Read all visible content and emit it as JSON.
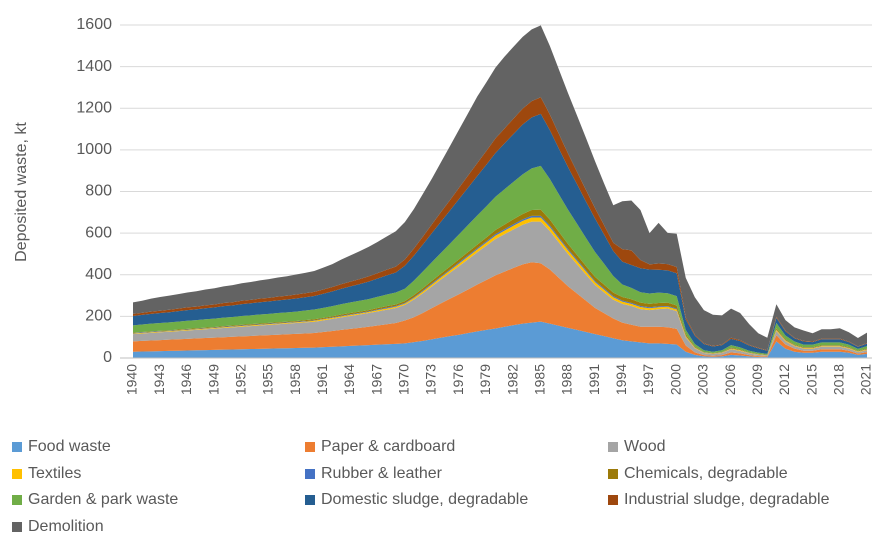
{
  "chart_data": {
    "type": "stacked_area",
    "y_label": "Deposited waste, kt",
    "x": [
      1940,
      1941,
      1942,
      1943,
      1944,
      1945,
      1946,
      1947,
      1948,
      1949,
      1950,
      1951,
      1952,
      1953,
      1954,
      1955,
      1956,
      1957,
      1958,
      1959,
      1960,
      1961,
      1962,
      1963,
      1964,
      1965,
      1966,
      1967,
      1968,
      1969,
      1970,
      1971,
      1972,
      1973,
      1974,
      1975,
      1976,
      1977,
      1978,
      1979,
      1980,
      1981,
      1982,
      1983,
      1984,
      1985,
      1986,
      1987,
      1988,
      1989,
      1990,
      1991,
      1992,
      1993,
      1994,
      1995,
      1996,
      1997,
      1998,
      1999,
      2000,
      2001,
      2002,
      2003,
      2004,
      2005,
      2006,
      2007,
      2008,
      2009,
      2010,
      2011,
      2012,
      2013,
      2014,
      2015,
      2016,
      2017,
      2018,
      2019,
      2020,
      2021
    ],
    "xlim": [
      1940,
      2021
    ],
    "xticks": [
      1940,
      1943,
      1946,
      1949,
      1952,
      1955,
      1958,
      1961,
      1964,
      1967,
      1970,
      1973,
      1976,
      1979,
      1982,
      1985,
      1988,
      1991,
      1994,
      1997,
      2000,
      2003,
      2006,
      2009,
      2012,
      2015,
      2018,
      2021
    ],
    "ylim": [
      0,
      1600
    ],
    "yticks": [
      0,
      200,
      400,
      600,
      800,
      1000,
      1200,
      1400,
      1600
    ],
    "grid": true,
    "legend": "bottom",
    "series": [
      {
        "name": "Food waste",
        "color": "#5b9bd5",
        "values": [
          30,
          31,
          32,
          33,
          34,
          35,
          36,
          37,
          38,
          39,
          40,
          41,
          42,
          43,
          44,
          45,
          46,
          47,
          48,
          49,
          50,
          52,
          54,
          56,
          58,
          60,
          62,
          64,
          66,
          68,
          70,
          76,
          82,
          90,
          98,
          105,
          112,
          120,
          128,
          135,
          142,
          150,
          158,
          165,
          170,
          175,
          165,
          155,
          145,
          135,
          125,
          115,
          105,
          95,
          85,
          80,
          75,
          70,
          70,
          68,
          65,
          30,
          15,
          8,
          6,
          8,
          15,
          12,
          8,
          5,
          4,
          80,
          45,
          30,
          25,
          25,
          30,
          30,
          30,
          25,
          15,
          20
        ]
      },
      {
        "name": "Paper & cardboard",
        "color": "#ed7d31",
        "values": [
          50,
          51,
          52,
          53,
          54,
          55,
          56,
          57,
          58,
          59,
          60,
          61,
          62,
          63,
          64,
          65,
          66,
          67,
          68,
          69,
          70,
          73,
          76,
          79,
          82,
          85,
          88,
          92,
          96,
          100,
          110,
          120,
          135,
          150,
          165,
          180,
          195,
          210,
          225,
          240,
          255,
          265,
          275,
          285,
          290,
          280,
          260,
          230,
          200,
          175,
          150,
          125,
          110,
          95,
          85,
          80,
          75,
          80,
          80,
          80,
          75,
          30,
          12,
          6,
          5,
          6,
          12,
          10,
          6,
          4,
          3,
          30,
          20,
          15,
          10,
          10,
          12,
          12,
          12,
          10,
          6,
          8
        ]
      },
      {
        "name": "Wood",
        "color": "#a5a5a5",
        "values": [
          35,
          36,
          37,
          38,
          38,
          39,
          40,
          41,
          42,
          43,
          44,
          45,
          46,
          47,
          48,
          49,
          50,
          51,
          52,
          53,
          54,
          56,
          58,
          60,
          62,
          64,
          66,
          68,
          70,
          72,
          75,
          85,
          95,
          105,
          115,
          125,
          135,
          145,
          155,
          165,
          175,
          180,
          185,
          190,
          195,
          200,
          185,
          170,
          155,
          140,
          125,
          110,
          100,
          90,
          90,
          90,
          85,
          80,
          85,
          90,
          85,
          40,
          20,
          10,
          8,
          10,
          15,
          12,
          8,
          6,
          5,
          20,
          15,
          12,
          10,
          10,
          12,
          12,
          12,
          10,
          8,
          10
        ]
      },
      {
        "name": "Textiles",
        "color": "#ffc000",
        "values": [
          3,
          3,
          3,
          3,
          3,
          3,
          3,
          3,
          3,
          3,
          4,
          4,
          4,
          4,
          4,
          4,
          4,
          4,
          4,
          4,
          5,
          5,
          5,
          5,
          5,
          5,
          5,
          6,
          6,
          6,
          6,
          7,
          8,
          9,
          10,
          11,
          12,
          13,
          14,
          15,
          16,
          17,
          18,
          19,
          20,
          20,
          19,
          18,
          17,
          16,
          15,
          14,
          13,
          12,
          11,
          10,
          10,
          9,
          9,
          8,
          8,
          5,
          3,
          2,
          2,
          2,
          3,
          3,
          2,
          2,
          1,
          5,
          4,
          3,
          3,
          3,
          3,
          3,
          3,
          3,
          2,
          3
        ]
      },
      {
        "name": "Rubber & leather",
        "color": "#4472c4",
        "values": [
          2,
          2,
          2,
          2,
          2,
          2,
          2,
          2,
          2,
          2,
          2,
          2,
          2,
          2,
          2,
          2,
          2,
          2,
          2,
          2,
          2,
          2,
          2,
          3,
          3,
          3,
          3,
          3,
          4,
          4,
          4,
          4,
          5,
          5,
          5,
          5,
          6,
          6,
          6,
          6,
          7,
          7,
          7,
          7,
          8,
          8,
          8,
          7,
          7,
          7,
          6,
          6,
          6,
          5,
          5,
          5,
          5,
          5,
          4,
          4,
          4,
          2,
          1,
          1,
          1,
          1,
          1,
          1,
          1,
          1,
          1,
          2,
          2,
          1,
          1,
          1,
          1,
          1,
          1,
          1,
          1,
          1
        ]
      },
      {
        "name": "Chemicals, degradable",
        "color": "#9c7a09",
        "values": [
          2,
          2,
          2,
          2,
          2,
          3,
          3,
          3,
          3,
          3,
          3,
          3,
          4,
          4,
          4,
          4,
          4,
          4,
          4,
          5,
          5,
          5,
          5,
          6,
          6,
          6,
          6,
          7,
          7,
          7,
          8,
          10,
          11,
          12,
          13,
          14,
          15,
          16,
          17,
          18,
          20,
          22,
          24,
          26,
          28,
          30,
          28,
          26,
          24,
          22,
          20,
          19,
          18,
          17,
          17,
          17,
          16,
          16,
          16,
          16,
          15,
          8,
          4,
          2,
          2,
          2,
          4,
          3,
          2,
          2,
          1,
          6,
          4,
          3,
          3,
          3,
          3,
          3,
          3,
          3,
          2,
          3
        ]
      },
      {
        "name": "Garden & park waste",
        "color": "#70ad47",
        "values": [
          35,
          36,
          37,
          37,
          38,
          38,
          39,
          39,
          40,
          40,
          41,
          41,
          42,
          42,
          43,
          43,
          44,
          44,
          45,
          46,
          47,
          48,
          49,
          50,
          51,
          52,
          53,
          54,
          56,
          58,
          60,
          70,
          80,
          90,
          100,
          110,
          120,
          130,
          140,
          150,
          160,
          170,
          180,
          190,
          200,
          210,
          195,
          180,
          165,
          150,
          135,
          120,
          100,
          80,
          60,
          55,
          50,
          50,
          50,
          45,
          45,
          20,
          12,
          8,
          6,
          8,
          12,
          10,
          8,
          6,
          5,
          25,
          18,
          15,
          12,
          12,
          14,
          14,
          14,
          12,
          10,
          12
        ]
      },
      {
        "name": "Domestic sludge, degradable",
        "color": "#255e91",
        "values": [
          45,
          46,
          47,
          48,
          49,
          50,
          51,
          52,
          53,
          54,
          55,
          56,
          57,
          58,
          59,
          60,
          61,
          62,
          63,
          64,
          65,
          68,
          71,
          74,
          77,
          80,
          84,
          88,
          92,
          96,
          110,
          120,
          130,
          140,
          150,
          160,
          170,
          180,
          190,
          200,
          210,
          220,
          230,
          240,
          245,
          250,
          235,
          220,
          205,
          190,
          175,
          160,
          140,
          120,
          110,
          110,
          115,
          115,
          110,
          110,
          110,
          50,
          40,
          30,
          25,
          25,
          30,
          30,
          25,
          20,
          15,
          25,
          20,
          15,
          15,
          12,
          15,
          15,
          15,
          12,
          10,
          12
        ]
      },
      {
        "name": "Industrial sludge, degradable",
        "color": "#9e480e",
        "values": [
          10,
          10,
          11,
          11,
          12,
          12,
          13,
          13,
          14,
          14,
          15,
          15,
          16,
          16,
          17,
          17,
          18,
          18,
          19,
          19,
          20,
          20,
          21,
          22,
          23,
          24,
          25,
          26,
          27,
          28,
          30,
          34,
          38,
          42,
          46,
          50,
          54,
          58,
          62,
          66,
          70,
          72,
          74,
          76,
          78,
          80,
          75,
          70,
          65,
          60,
          55,
          50,
          45,
          40,
          60,
          70,
          40,
          25,
          30,
          30,
          30,
          10,
          5,
          3,
          3,
          3,
          5,
          5,
          3,
          3,
          2,
          5,
          4,
          3,
          3,
          3,
          3,
          3,
          3,
          3,
          2,
          3
        ]
      },
      {
        "name": "Demolition",
        "color": "#636363",
        "values": [
          55,
          58,
          62,
          66,
          68,
          70,
          72,
          74,
          76,
          78,
          80,
          82,
          84,
          86,
          88,
          90,
          92,
          94,
          96,
          98,
          100,
          105,
          110,
          118,
          126,
          134,
          142,
          150,
          160,
          170,
          180,
          190,
          205,
          220,
          240,
          260,
          280,
          300,
          320,
          330,
          340,
          345,
          345,
          345,
          345,
          345,
          330,
          310,
          290,
          270,
          250,
          225,
          200,
          180,
          230,
          240,
          240,
          150,
          195,
          150,
          160,
          190,
          180,
          160,
          150,
          140,
          140,
          130,
          100,
          70,
          60,
          60,
          50,
          50,
          50,
          40,
          45,
          45,
          50,
          45,
          40,
          50
        ]
      }
    ]
  }
}
